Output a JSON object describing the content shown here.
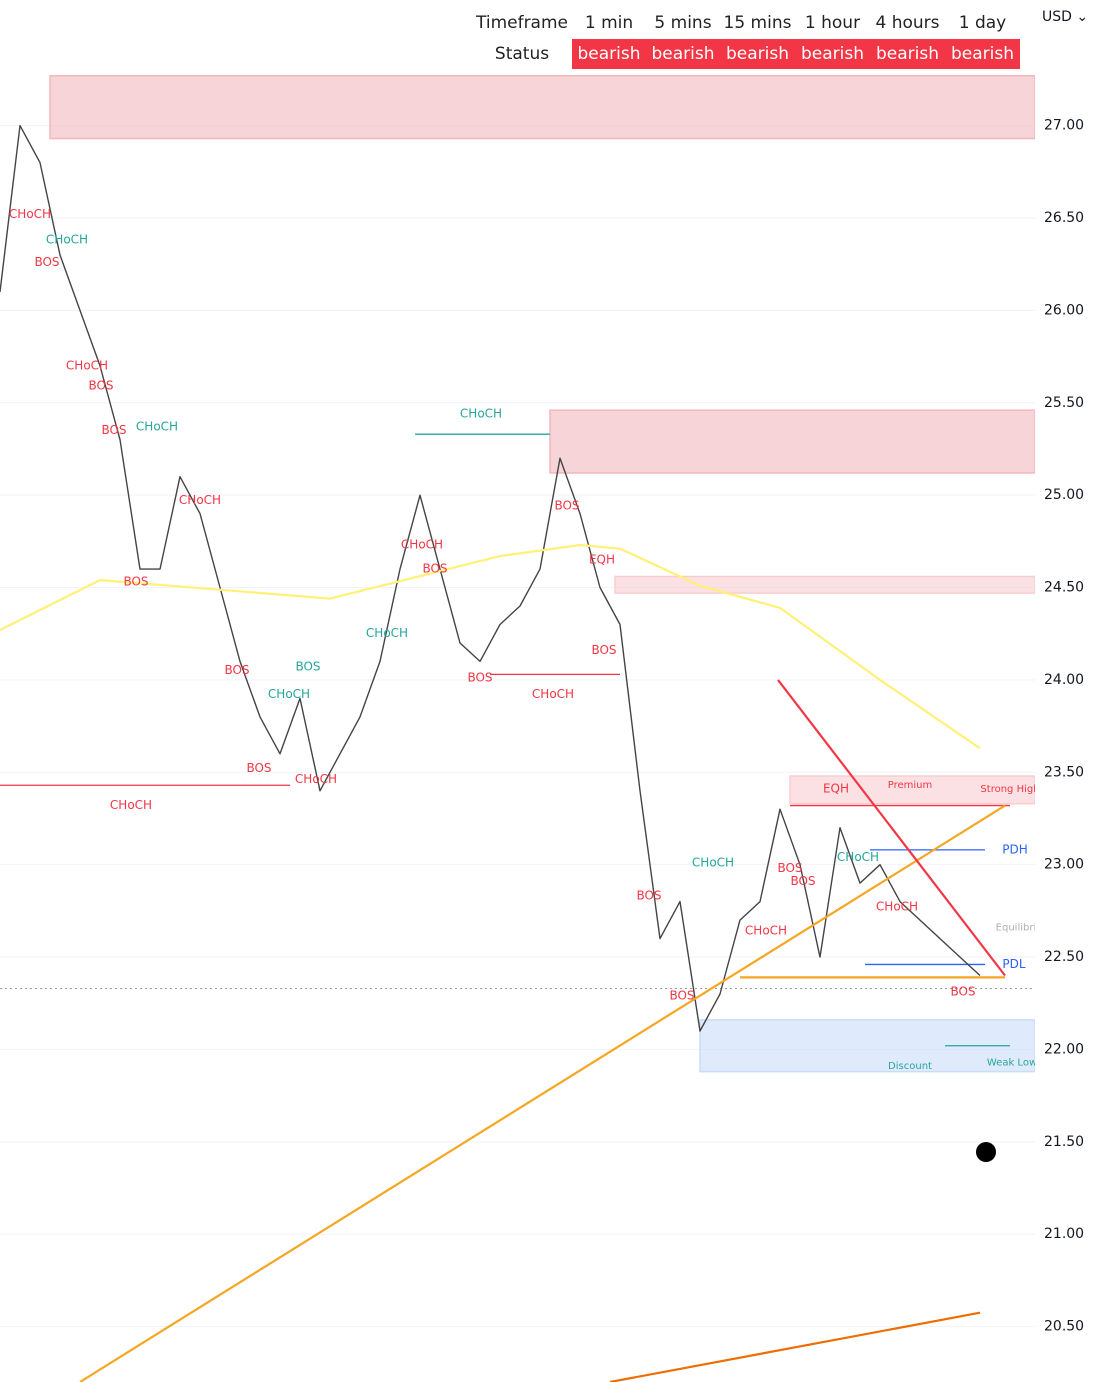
{
  "currency": "USD",
  "status_table": {
    "header": [
      "Timeframe",
      "1 min",
      "5 mins",
      "15 mins",
      "1 hour",
      "4 hours",
      "1 day"
    ],
    "status_label": "Status",
    "status": [
      "bearish",
      "bearish",
      "bearish",
      "bearish",
      "bearish",
      "bearish"
    ]
  },
  "chart_data": {
    "type": "line",
    "ylim": [
      20.2,
      27.68
    ],
    "xlim": [
      0,
      51.75
    ],
    "yticks": [
      {
        "value": 20.5,
        "label": "20.50"
      },
      {
        "value": 21,
        "label": "21.00"
      },
      {
        "value": 21.5,
        "label": "21.50"
      },
      {
        "value": 22,
        "label": "22.00"
      },
      {
        "value": 22.5,
        "label": "22.50"
      },
      {
        "value": 23,
        "label": "23.00"
      },
      {
        "value": 23.5,
        "label": "23.50"
      },
      {
        "value": 24,
        "label": "24.00"
      },
      {
        "value": 24.5,
        "label": "24.50"
      },
      {
        "value": 25,
        "label": "25.00"
      },
      {
        "value": 25.5,
        "label": "25.50"
      },
      {
        "value": 26,
        "label": "26.00"
      },
      {
        "value": 26.5,
        "label": "26.50"
      },
      {
        "value": 27,
        "label": "27.00"
      }
    ],
    "grid": true,
    "price_line": 22.33,
    "series": [
      {
        "color": "#444444",
        "x": [
          0,
          1,
          2,
          3,
          4,
          5,
          6,
          7,
          8,
          9,
          10,
          11,
          12,
          13,
          14,
          15,
          16,
          17,
          18,
          19,
          20,
          21,
          22,
          23,
          24,
          25,
          26,
          27,
          28,
          29,
          30,
          31,
          32,
          33,
          34,
          35,
          36,
          37,
          38,
          39,
          40,
          41,
          42,
          43,
          44,
          45,
          46,
          47,
          48,
          49
        ],
        "values": [
          26.1,
          27.0,
          26.8,
          26.3,
          26.0,
          25.7,
          25.3,
          24.6,
          24.6,
          25.1,
          24.9,
          24.5,
          24.1,
          23.8,
          23.6,
          23.9,
          23.4,
          23.6,
          23.8,
          24.1,
          24.6,
          25.0,
          24.6,
          24.2,
          24.1,
          24.3,
          24.4,
          24.6,
          25.2,
          24.9,
          24.5,
          24.3,
          23.4,
          22.6,
          22.8,
          22.1,
          22.3,
          22.7,
          22.8,
          23.3,
          23.0,
          22.5,
          23.2,
          22.9,
          23.0,
          22.8,
          22.7,
          22.6,
          22.5,
          22.4
        ]
      },
      {
        "color": "#fff176",
        "x": [
          0,
          5,
          16.5,
          25,
          29,
          31,
          35,
          39,
          44,
          49
        ],
        "values": [
          24.27,
          24.54,
          24.44,
          24.67,
          24.73,
          24.71,
          24.51,
          24.39,
          24.0,
          23.63
        ]
      },
      {
        "color": "#f5a623",
        "x": [
          4,
          50.25
        ],
        "values": [
          20.2,
          23.32
        ]
      },
      {
        "color": "#ef6c00",
        "x": [
          30.5,
          49
        ],
        "values": [
          20.2,
          20.575
        ]
      },
      {
        "color": "#f23645",
        "x": [
          38.9,
          50.25
        ],
        "values": [
          24.0,
          22.4
        ]
      },
      {
        "color": "#f5a623",
        "x": [
          37,
          50.25
        ],
        "values": [
          22.39,
          22.39
        ]
      }
    ],
    "zones": [
      {
        "x": [
          2.5,
          51.75
        ],
        "y": [
          26.93,
          27.27
        ],
        "color": "#f2b8bd"
      },
      {
        "x": [
          27.5,
          51.75
        ],
        "y": [
          25.12,
          25.46
        ],
        "color": "#f2b8bd"
      },
      {
        "x": [
          30.75,
          51.75
        ],
        "y": [
          24.47,
          24.56
        ],
        "color": "#f9cdd0"
      },
      {
        "x": [
          39.5,
          51.75
        ],
        "y": [
          23.33,
          23.48
        ],
        "color": "#f9cdd0"
      },
      {
        "x": [
          35,
          51.75
        ],
        "y": [
          21.88,
          22.16
        ],
        "color": "#c9dcfb"
      }
    ],
    "levels": [
      {
        "x": [
          0,
          14.5
        ],
        "y": 23.43,
        "color": "#f23645"
      },
      {
        "x": [
          20.75,
          27.5
        ],
        "y": 25.33,
        "color": "#26a69a"
      },
      {
        "x": [
          24.5,
          31
        ],
        "y": 24.03,
        "color": "#f23645"
      },
      {
        "x": [
          39.5,
          50.5
        ],
        "y": 23.32,
        "color": "#f23645"
      },
      {
        "x": [
          43.5,
          49.25
        ],
        "y": 23.08,
        "color": "#2962ff"
      },
      {
        "x": [
          43.25,
          49.25
        ],
        "y": 22.46,
        "color": "#2962ff"
      },
      {
        "x": [
          47.25,
          50.5
        ],
        "y": 22.02,
        "color": "#26a69a"
      }
    ],
    "annotations": [
      {
        "text": "CHoCH",
        "x": 1.5,
        "y": 26.52,
        "color": "#f23645"
      },
      {
        "text": "CHoCH",
        "x": 3.35,
        "y": 26.38,
        "color": "#26a69a"
      },
      {
        "text": "BOS",
        "x": 2.35,
        "y": 26.26,
        "color": "#f23645"
      },
      {
        "text": "CHoCH",
        "x": 4.35,
        "y": 25.7,
        "color": "#f23645"
      },
      {
        "text": "BOS",
        "x": 5.05,
        "y": 25.59,
        "color": "#f23645"
      },
      {
        "text": "BOS",
        "x": 5.7,
        "y": 25.35,
        "color": "#f23645"
      },
      {
        "text": "CHoCH",
        "x": 7.85,
        "y": 25.37,
        "color": "#26a69a"
      },
      {
        "text": "CHoCH",
        "x": 10,
        "y": 24.97,
        "color": "#f23645"
      },
      {
        "text": "BOS",
        "x": 6.8,
        "y": 24.53,
        "color": "#f23645"
      },
      {
        "text": "CHoCH",
        "x": 24.05,
        "y": 25.44,
        "color": "#26a69a"
      },
      {
        "text": "CHoCH",
        "x": 21.1,
        "y": 24.73,
        "color": "#f23645"
      },
      {
        "text": "BOS",
        "x": 21.75,
        "y": 24.6,
        "color": "#f23645"
      },
      {
        "text": "BOS",
        "x": 28.35,
        "y": 24.94,
        "color": "#f23645"
      },
      {
        "text": "EQH",
        "x": 30.1,
        "y": 24.65,
        "color": "#f23645"
      },
      {
        "text": "CHoCH",
        "x": 19.35,
        "y": 24.25,
        "color": "#26a69a"
      },
      {
        "text": "BOS",
        "x": 30.2,
        "y": 24.16,
        "color": "#f23645"
      },
      {
        "text": "BOS",
        "x": 24,
        "y": 24.01,
        "color": "#f23645"
      },
      {
        "text": "CHoCH",
        "x": 27.65,
        "y": 23.92,
        "color": "#f23645"
      },
      {
        "text": "BOS",
        "x": 11.85,
        "y": 24.05,
        "color": "#f23645"
      },
      {
        "text": "BOS",
        "x": 15.4,
        "y": 24.07,
        "color": "#26a69a"
      },
      {
        "text": "CHoCH",
        "x": 14.45,
        "y": 23.92,
        "color": "#26a69a"
      },
      {
        "text": "BOS",
        "x": 12.95,
        "y": 23.52,
        "color": "#f23645"
      },
      {
        "text": "CHoCH",
        "x": 15.8,
        "y": 23.46,
        "color": "#f23645"
      },
      {
        "text": "CHoCH",
        "x": 6.55,
        "y": 23.32,
        "color": "#f23645"
      },
      {
        "text": "CHoCH",
        "x": 35.65,
        "y": 23.01,
        "color": "#26a69a"
      },
      {
        "text": "BOS",
        "x": 32.45,
        "y": 22.83,
        "color": "#f23645"
      },
      {
        "text": "BOS",
        "x": 34.1,
        "y": 22.29,
        "color": "#f23645"
      },
      {
        "text": "CHoCH",
        "x": 38.3,
        "y": 22.64,
        "color": "#f23645"
      },
      {
        "text": "BOS",
        "x": 39.5,
        "y": 22.98,
        "color": "#f23645"
      },
      {
        "text": "BOS",
        "x": 40.15,
        "y": 22.91,
        "color": "#f23645"
      },
      {
        "text": "EQH",
        "x": 41.8,
        "y": 23.41,
        "color": "#f23645"
      },
      {
        "text": "Premium",
        "x": 45.5,
        "y": 23.43,
        "color": "#f23645"
      },
      {
        "text": "Strong High",
        "x": 50.5,
        "y": 23.41,
        "color": "#f23645"
      },
      {
        "text": "PDH",
        "x": 50.75,
        "y": 23.08,
        "color": "#2962ff"
      },
      {
        "text": "CHoCH",
        "x": 42.9,
        "y": 23.04,
        "color": "#26a69a"
      },
      {
        "text": "CHoCH",
        "x": 44.85,
        "y": 22.77,
        "color": "#f23645"
      },
      {
        "text": "Equilibrium",
        "x": 51.2,
        "y": 22.66,
        "color": "#b0b0b0"
      },
      {
        "text": "PDL",
        "x": 50.7,
        "y": 22.46,
        "color": "#2962ff"
      },
      {
        "text": "BOS",
        "x": 48.15,
        "y": 22.31,
        "color": "#f23645"
      },
      {
        "text": "Discount",
        "x": 45.5,
        "y": 21.91,
        "color": "#26a69a"
      },
      {
        "text": "Weak Low",
        "x": 50.6,
        "y": 21.93,
        "color": "#26a69a"
      }
    ]
  }
}
